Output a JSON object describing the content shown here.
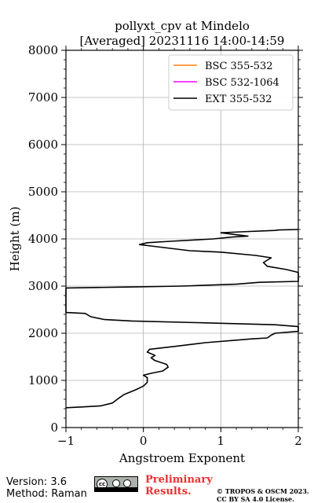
{
  "chart_data": {
    "type": "line",
    "title": "pollyxt_cpv at Mindelo",
    "subtitle": "[Averaged] 20231116 14:00-14:59",
    "xlabel": "Angstroem Exponent",
    "ylabel": "Height (m)",
    "xlim": [
      -1,
      2
    ],
    "ylim": [
      0,
      8000
    ],
    "xticks": [
      "−1",
      "0",
      "1",
      "2"
    ],
    "yticks": [
      "0",
      "1000",
      "2000",
      "3000",
      "4000",
      "5000",
      "6000",
      "7000",
      "8000"
    ],
    "grid": true,
    "legend_position": "top-right",
    "series": [
      {
        "name": "BSC 355-532",
        "color": "#ff7f0e",
        "points": []
      },
      {
        "name": "BSC 532-1064",
        "color": "#ff00ff",
        "points": []
      },
      {
        "name": "EXT 355-532",
        "color": "#000000",
        "points": [
          [
            -1.0,
            420
          ],
          [
            -0.75,
            440
          ],
          [
            -0.55,
            460
          ],
          [
            -0.4,
            520
          ],
          [
            -0.32,
            620
          ],
          [
            -0.25,
            700
          ],
          [
            -0.1,
            800
          ],
          [
            0.0,
            880
          ],
          [
            0.05,
            960
          ],
          [
            0.05,
            1060
          ],
          [
            0.0,
            1110
          ],
          [
            0.1,
            1150
          ],
          [
            0.25,
            1200
          ],
          [
            0.32,
            1280
          ],
          [
            0.3,
            1340
          ],
          [
            0.15,
            1420
          ],
          [
            0.1,
            1480
          ],
          [
            0.15,
            1530
          ],
          [
            0.05,
            1600
          ],
          [
            0.08,
            1660
          ],
          [
            0.4,
            1720
          ],
          [
            0.8,
            1800
          ],
          [
            1.4,
            1880
          ],
          [
            1.6,
            1900
          ],
          [
            1.65,
            1960
          ],
          [
            1.7,
            2000
          ],
          [
            2.0,
            2040
          ],
          [
            2.0,
            2140
          ],
          [
            1.7,
            2180
          ],
          [
            0.8,
            2220
          ],
          [
            -0.15,
            2260
          ],
          [
            -0.5,
            2290
          ],
          [
            -0.68,
            2350
          ],
          [
            -0.75,
            2420
          ],
          [
            -1.0,
            2440
          ],
          [
            -1.0,
            2960
          ],
          [
            -0.2,
            2980
          ],
          [
            0.5,
            3000
          ],
          [
            1.2,
            3040
          ],
          [
            1.5,
            3080
          ],
          [
            2.0,
            3100
          ],
          [
            2.0,
            3290
          ],
          [
            1.85,
            3350
          ],
          [
            1.6,
            3420
          ],
          [
            1.55,
            3500
          ],
          [
            1.65,
            3600
          ],
          [
            1.45,
            3650
          ],
          [
            1.0,
            3720
          ],
          [
            0.6,
            3750
          ],
          [
            0.1,
            3850
          ],
          [
            -0.05,
            3880
          ],
          [
            0.05,
            3920
          ],
          [
            0.35,
            3950
          ],
          [
            0.9,
            4000
          ],
          [
            1.15,
            4040
          ],
          [
            1.35,
            4060
          ],
          [
            1.0,
            4130
          ],
          [
            1.25,
            4150
          ],
          [
            1.7,
            4180
          ],
          [
            1.75,
            4190
          ],
          [
            2.0,
            4200
          ]
        ]
      }
    ]
  },
  "footer": {
    "version": "Version: 3.6",
    "method": "Method: Raman",
    "preliminary_line1": "Preliminary",
    "preliminary_line2": "Results.",
    "copyright_line1": "© TROPOS & OSCM 2023.",
    "copyright_line2": "CC BY SA 4.0 License."
  }
}
